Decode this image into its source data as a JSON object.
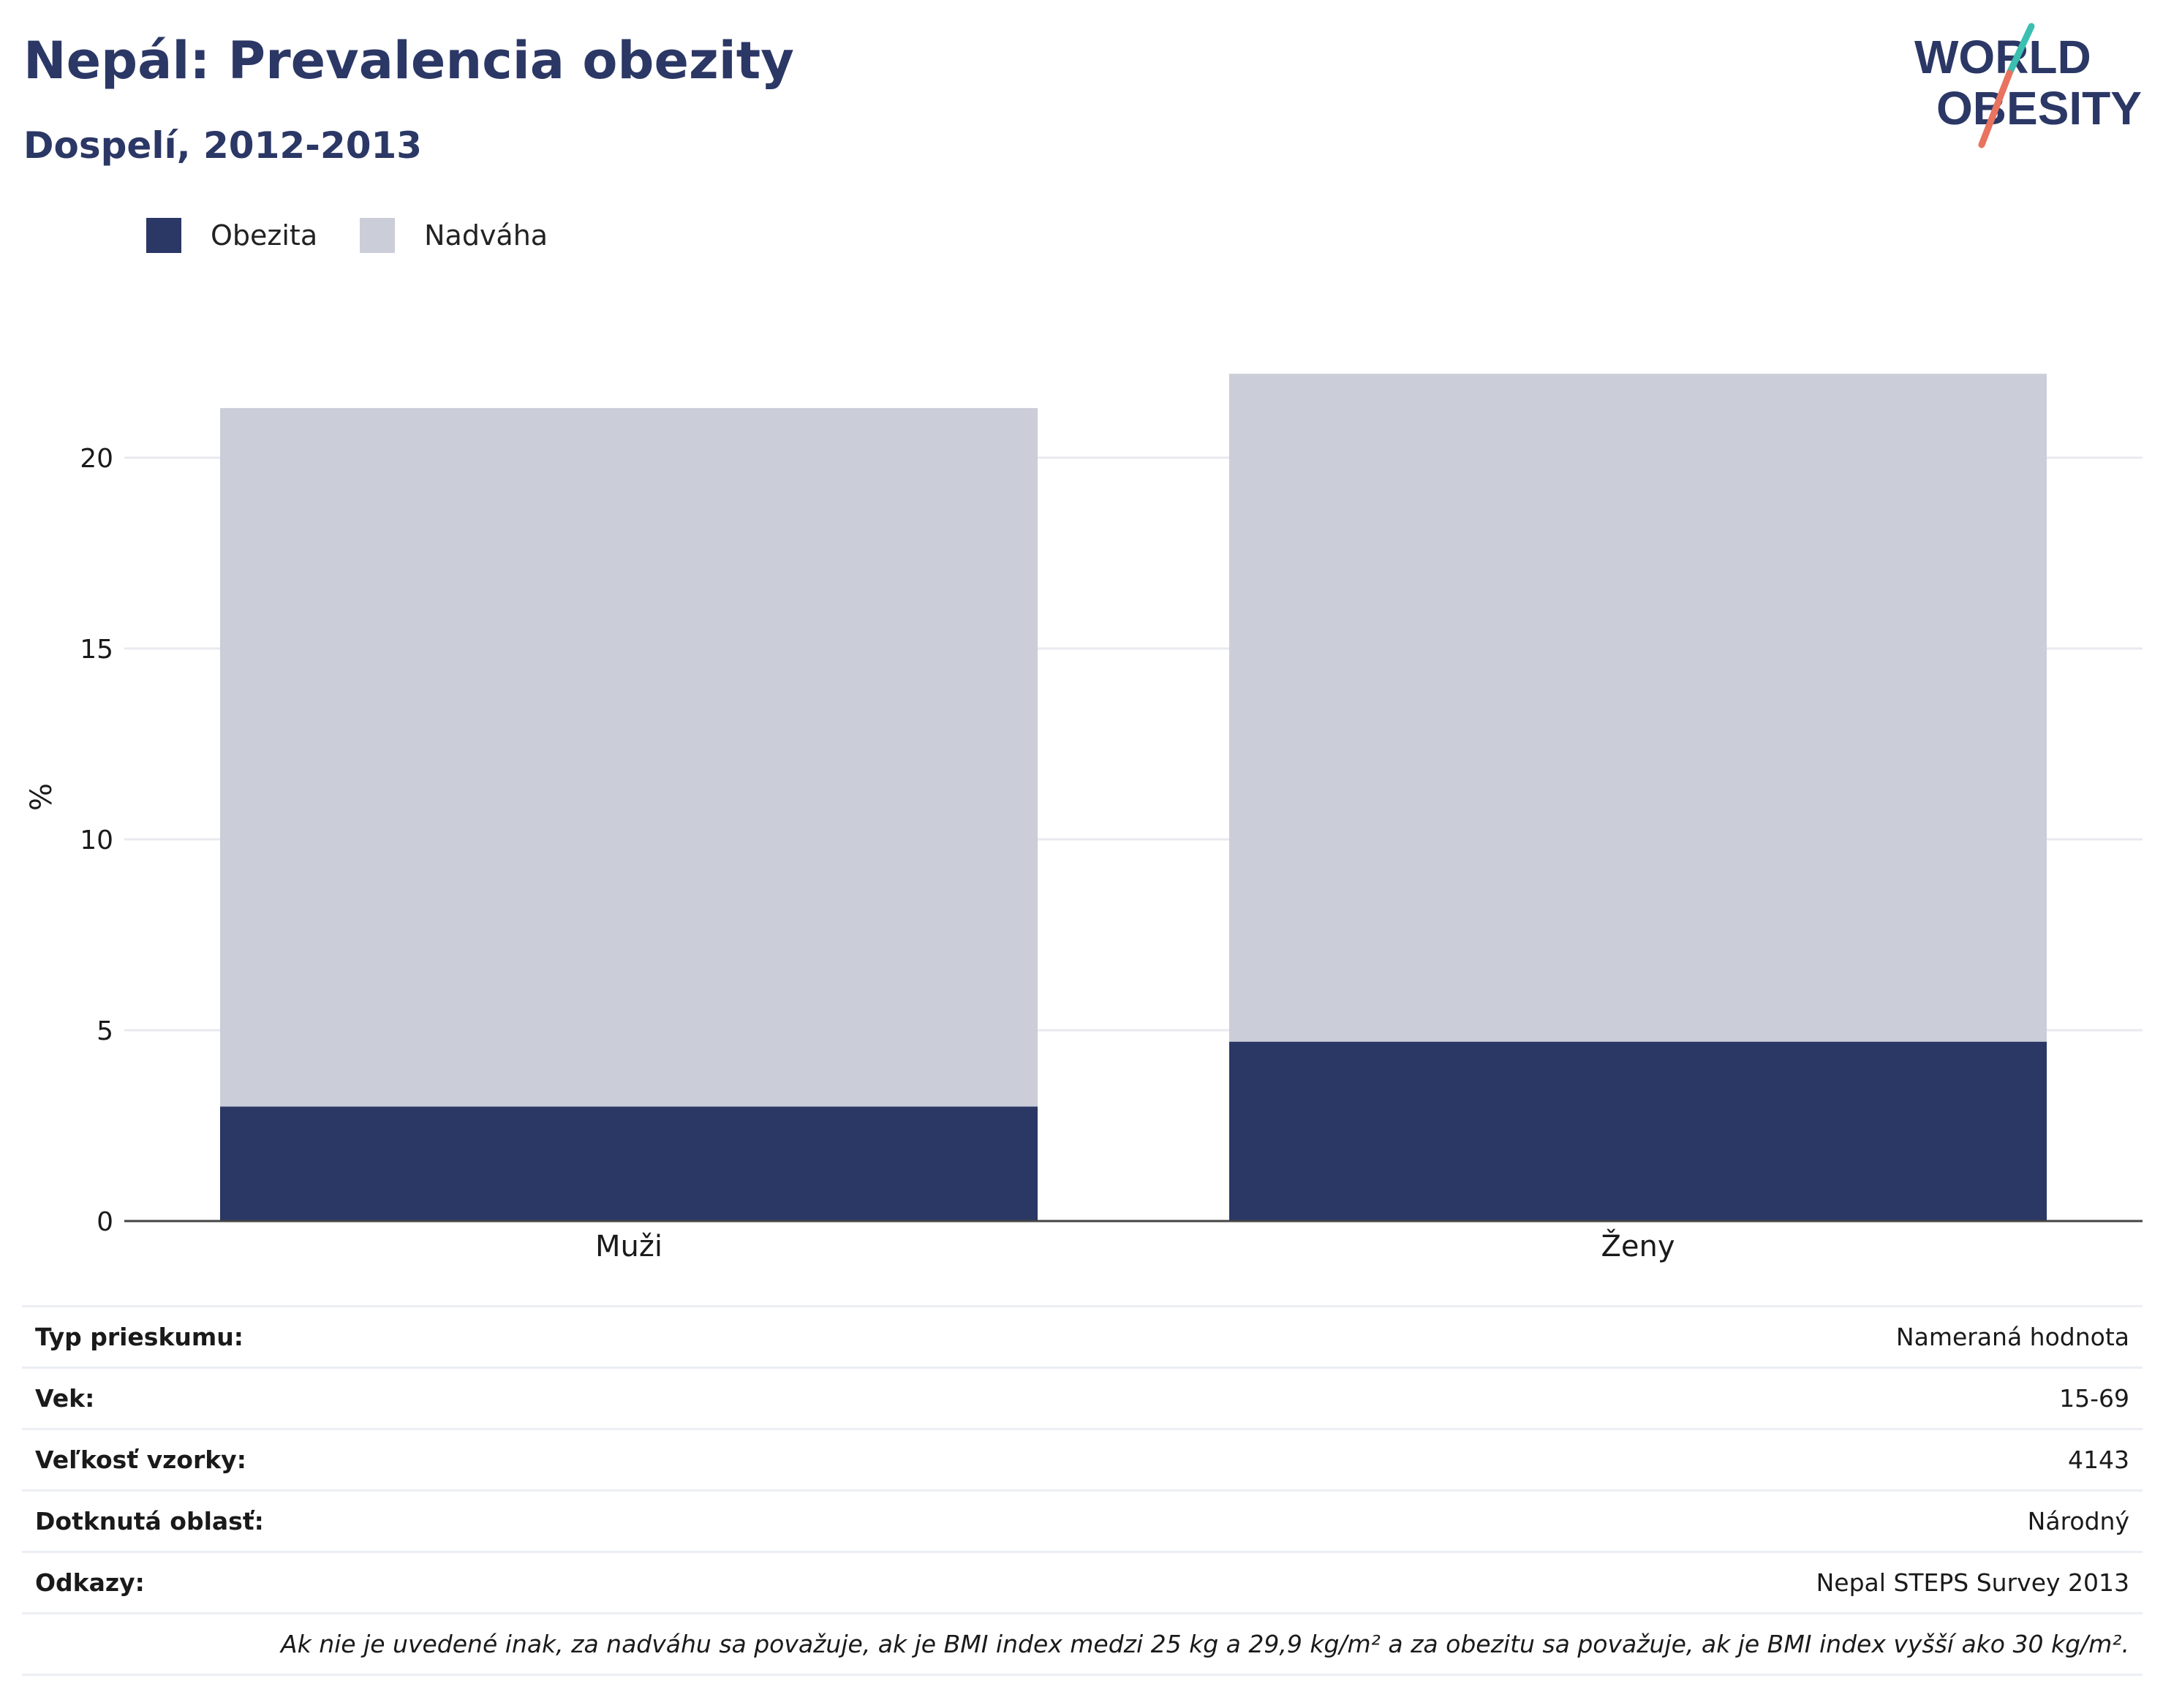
{
  "header": {
    "title": "Nepál: Prevalencia obezity",
    "subtitle": "Dospelí, 2012-2013",
    "logo_line1": "WORLD",
    "logo_line2": "OBESITY"
  },
  "colors": {
    "obesity": "#2b3765",
    "overweight": "#cbcdd8",
    "title": "#2b3765",
    "logo_teal": "#3bbfb0",
    "logo_coral": "#e8735f"
  },
  "chart_data": {
    "type": "bar",
    "stacked": true,
    "categories": [
      "Muži",
      "Ženy"
    ],
    "series": [
      {
        "name": "Obezita",
        "values": [
          3.0,
          4.7
        ]
      },
      {
        "name": "Nadváha",
        "values": [
          18.3,
          17.5
        ]
      }
    ],
    "ylabel": "%",
    "xlabel": "",
    "ylim": [
      0,
      25
    ],
    "yticks": [
      0,
      5,
      10,
      15,
      20
    ],
    "grid": true,
    "legend": "top-left"
  },
  "meta": {
    "rows": [
      {
        "label": "Typ prieskumu:",
        "value": "Nameraná hodnota"
      },
      {
        "label": "Vek:",
        "value": "15-69"
      },
      {
        "label": "Veľkosť vzorky:",
        "value": "4143"
      },
      {
        "label": "Dotknutá oblasť:",
        "value": "Národný"
      },
      {
        "label": "Odkazy:",
        "value": "Nepal STEPS Survey 2013"
      }
    ],
    "note": "Ak nie je uvedené inak, za nadváhu sa považuje, ak je BMI index medzi 25 kg a 29,9 kg/m² a za obezitu sa považuje, ak je BMI index vyšší ako 30 kg/m²."
  }
}
